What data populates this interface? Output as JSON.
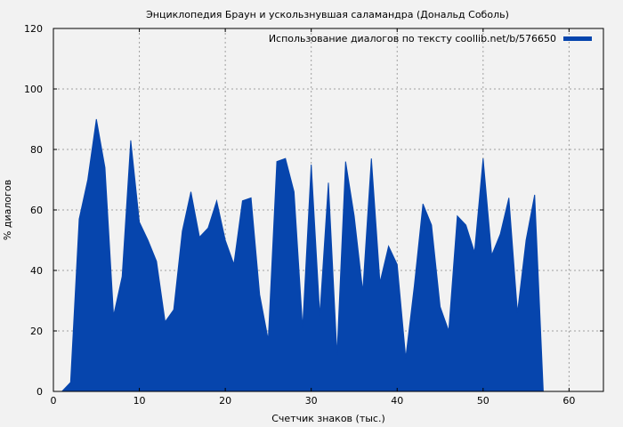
{
  "chart_data": {
    "type": "area",
    "title": "Энциклопедия Браун и ускользнувшая саламандра (Дональд Соболь)",
    "xlabel": "Счетчик знаков (тыс.)",
    "ylabel": "% диалогов",
    "xlim": [
      0,
      64
    ],
    "ylim": [
      0,
      120
    ],
    "xticks": [
      0,
      10,
      20,
      30,
      40,
      50,
      60
    ],
    "yticks": [
      0,
      20,
      40,
      60,
      80,
      100,
      120
    ],
    "grid": true,
    "legend_position": "top-right",
    "series": [
      {
        "name": "Использование диалогов по тексту coollib.net/b/576650",
        "color": "#0645ad",
        "x": [
          1,
          2,
          3,
          4,
          5,
          6,
          7,
          8,
          9,
          10,
          11,
          12,
          13,
          14,
          15,
          16,
          17,
          18,
          19,
          20,
          21,
          22,
          23,
          24,
          25,
          26,
          27,
          28,
          29,
          30,
          31,
          32,
          33,
          34,
          35,
          36,
          37,
          38,
          39,
          40,
          41,
          42,
          43,
          44,
          45,
          46,
          47,
          48,
          49,
          50,
          51,
          52,
          53,
          54,
          55,
          56,
          57
        ],
        "y": [
          0,
          3,
          57,
          70,
          90,
          74,
          25,
          38,
          83,
          56,
          50,
          43,
          23,
          27,
          53,
          66,
          51,
          54,
          63,
          50,
          42,
          63,
          64,
          32,
          17,
          76,
          77,
          66,
          21,
          75,
          25,
          69,
          12,
          76,
          58,
          33,
          77,
          36,
          48,
          42,
          11,
          35,
          62,
          55,
          28,
          20,
          58,
          55,
          46,
          77,
          45,
          52,
          64,
          26,
          50,
          65,
          0
        ]
      }
    ]
  }
}
